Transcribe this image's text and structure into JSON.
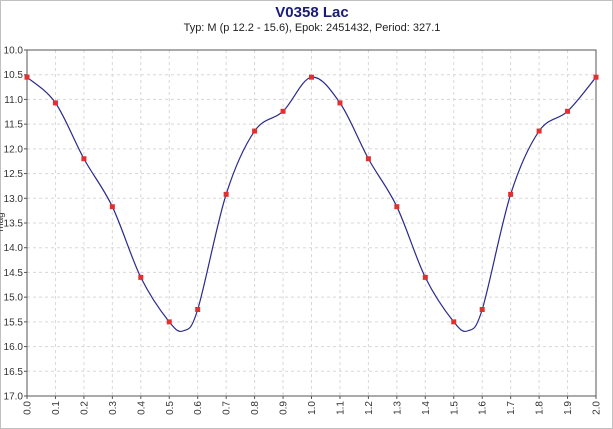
{
  "chart_data": {
    "type": "line",
    "title": "V0358 Lac",
    "subtitle": "Typ: M (p 12.2 - 15.6), Epok: 2451432, Period: 327.1",
    "xlabel": "",
    "ylabel": "mag",
    "xlim": [
      0.0,
      2.0
    ],
    "ylim": [
      10.0,
      17.0
    ],
    "y_inverted": true,
    "grid": true,
    "x_ticks": [
      "0.0",
      "0.1",
      "0.2",
      "0.3",
      "0.4",
      "0.5",
      "0.6",
      "0.7",
      "0.8",
      "0.9",
      "1.0",
      "1.1",
      "1.2",
      "1.3",
      "1.4",
      "1.5",
      "1.6",
      "1.7",
      "1.8",
      "1.9",
      "2.0"
    ],
    "y_ticks": [
      "10.0",
      "10.5",
      "11.0",
      "11.5",
      "12.0",
      "12.5",
      "13.0",
      "13.5",
      "14.0",
      "14.5",
      "15.0",
      "15.5",
      "16.0",
      "16.5",
      "17.0"
    ],
    "series": [
      {
        "name": "",
        "x": [
          0.0,
          0.1,
          0.2,
          0.3,
          0.4,
          0.5,
          0.6,
          0.7,
          0.8,
          0.9,
          1.0,
          1.1,
          1.2,
          1.3,
          1.4,
          1.5,
          1.6,
          1.7,
          1.8,
          1.9,
          2.0
        ],
        "y": [
          10.55,
          11.07,
          12.2,
          13.17,
          14.6,
          15.5,
          15.25,
          12.92,
          11.64,
          11.24,
          10.55,
          11.07,
          12.2,
          13.17,
          14.6,
          15.5,
          15.25,
          12.92,
          11.64,
          11.24,
          10.55
        ]
      }
    ],
    "curve_min": {
      "x": [
        0.55,
        1.55
      ],
      "y": 15.68
    },
    "colors": {
      "curve": "#2a2a8c",
      "points": "#e03030",
      "title": "#1a1a7a",
      "grid": "#d8d8d8",
      "axis": "#555555",
      "frame": "#c0c0c0"
    }
  }
}
